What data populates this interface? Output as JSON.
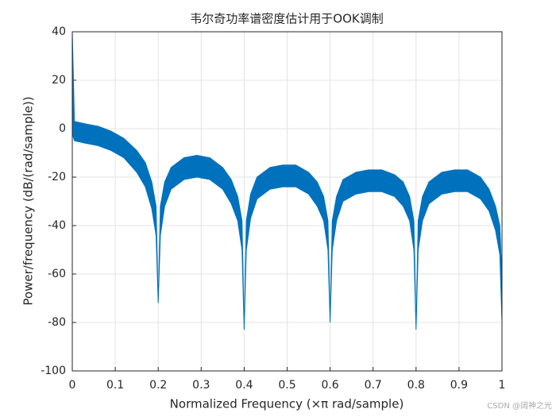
{
  "chart_data": {
    "type": "area",
    "title": "韦尔奇功率谱密度估计用于OOK调制",
    "x_label": "Normalized Frequency  (×π rad/sample)",
    "y_label": "Power/frequency (dB/(rad/sample))",
    "watermark": "CSDN @阔神之光",
    "x": [
      0,
      0.005,
      0.03,
      0.06,
      0.09,
      0.12,
      0.15,
      0.17,
      0.185,
      0.195,
      0.2,
      0.205,
      0.215,
      0.23,
      0.26,
      0.29,
      0.32,
      0.35,
      0.37,
      0.385,
      0.395,
      0.4,
      0.405,
      0.415,
      0.43,
      0.46,
      0.49,
      0.52,
      0.55,
      0.57,
      0.585,
      0.595,
      0.6,
      0.605,
      0.615,
      0.63,
      0.66,
      0.69,
      0.72,
      0.75,
      0.77,
      0.785,
      0.795,
      0.8,
      0.805,
      0.815,
      0.83,
      0.86,
      0.89,
      0.92,
      0.95,
      0.97,
      0.985,
      0.995,
      1
    ],
    "series": [
      {
        "color": "#0072bd",
        "values": [
          40,
          3,
          2,
          1,
          -1,
          -4,
          -9,
          -14,
          -22,
          -32,
          -72,
          -32,
          -22,
          -16,
          -12,
          -11,
          -12,
          -16,
          -21,
          -28,
          -38,
          -83,
          -38,
          -27,
          -20,
          -16,
          -15,
          -15,
          -18,
          -22,
          -28,
          -38,
          -80,
          -38,
          -28,
          -21,
          -18,
          -17,
          -17,
          -19,
          -22,
          -28,
          -38,
          -83,
          -38,
          -28,
          -22,
          -18,
          -17,
          -17,
          -20,
          -25,
          -32,
          -40,
          -62
        ]
      },
      {
        "color": "#0072bd",
        "values": [
          -2,
          -5,
          -6,
          -7,
          -9,
          -12,
          -18,
          -24,
          -33,
          -44,
          -72,
          -44,
          -32,
          -25,
          -21,
          -20,
          -21,
          -25,
          -31,
          -38,
          -50,
          -83,
          -50,
          -37,
          -29,
          -25,
          -24,
          -24,
          -27,
          -32,
          -38,
          -50,
          -80,
          -50,
          -38,
          -30,
          -27,
          -26,
          -26,
          -28,
          -32,
          -38,
          -50,
          -83,
          -50,
          -38,
          -31,
          -27,
          -26,
          -26,
          -29,
          -34,
          -42,
          -52,
          -80
        ]
      }
    ],
    "xlim": [
      0,
      1
    ],
    "xticks": [
      0,
      0.1,
      0.2,
      0.3,
      0.4,
      0.5,
      0.6,
      0.7,
      0.8,
      0.9,
      1
    ],
    "ylim": [
      -100,
      40
    ],
    "yticks": [
      -100,
      -80,
      -60,
      -40,
      -20,
      0,
      20,
      40
    ],
    "grid": true
  }
}
